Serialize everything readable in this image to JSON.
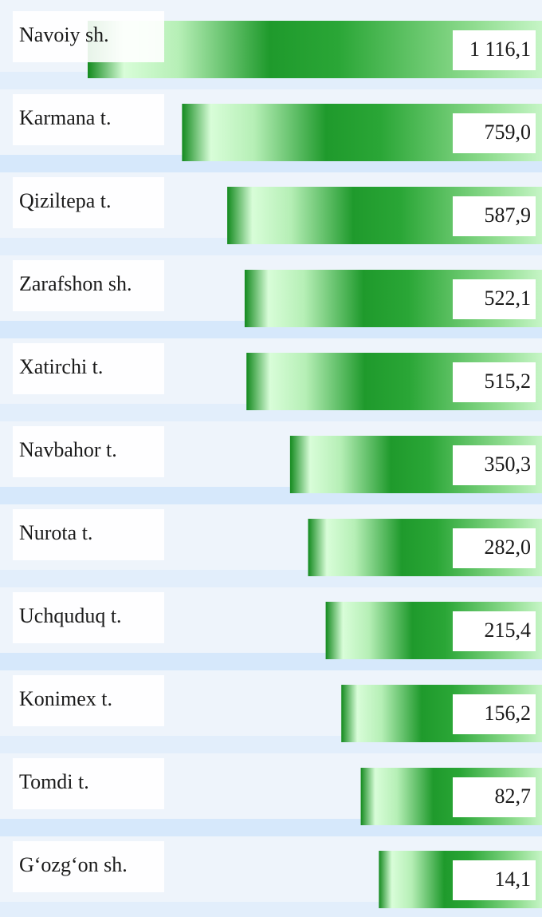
{
  "chart_data": {
    "type": "bar",
    "orientation": "horizontal",
    "categories": [
      "Navoiy sh.",
      "Karmana t.",
      "Qiziltepa t.",
      "Zarafshon sh.",
      "Xatirchi t.",
      "Navbahor t.",
      "Nurota t.",
      "Uchquduq t.",
      "Konimex t.",
      "Tomdi t.",
      "G‘ozg‘on sh."
    ],
    "values": [
      1116.1,
      759.0,
      587.9,
      522.1,
      515.2,
      350.3,
      282.0,
      215.4,
      156.2,
      82.7,
      14.1
    ],
    "value_labels": [
      "1 116,1",
      "759,0",
      "587,9",
      "522,1",
      "515,2",
      "350,3",
      "282,0",
      "215,4",
      "156,2",
      "82,7",
      "14,1"
    ],
    "color": "#1f9a2c"
  }
}
